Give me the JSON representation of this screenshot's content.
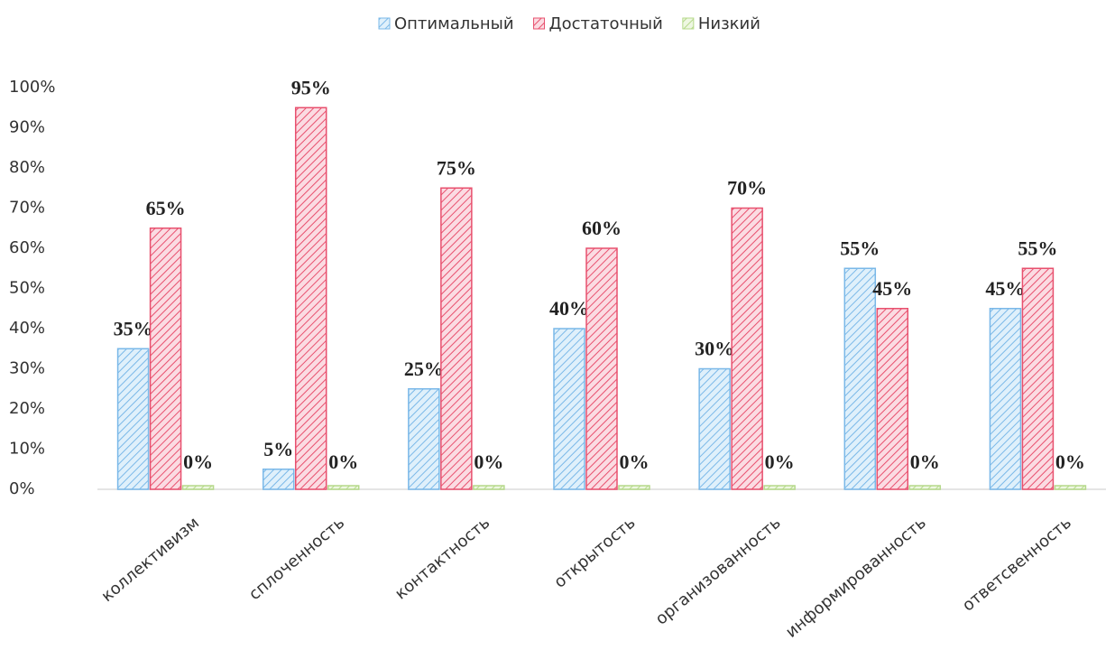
{
  "chart_data": {
    "type": "bar",
    "categories": [
      "коллективизм",
      "сплоченность",
      "контактность",
      "открытость",
      "организованность",
      "информированность",
      "ответсвенность"
    ],
    "series": [
      {
        "name": "Оптимальный",
        "color": "#7ab8e8",
        "values": [
          35,
          5,
          25,
          40,
          30,
          55,
          45
        ],
        "value_labels": [
          "35%",
          "5%",
          "25%",
          "40%",
          "30%",
          "55%",
          "45%"
        ]
      },
      {
        "name": "Достаточный",
        "color": "#e8506e",
        "values": [
          65,
          95,
          75,
          60,
          70,
          45,
          55
        ],
        "value_labels": [
          "65%",
          "95%",
          "75%",
          "60%",
          "70%",
          "45%",
          "55%"
        ]
      },
      {
        "name": "Низкий",
        "color": "#b5d98a",
        "values": [
          0,
          0,
          0,
          0,
          0,
          0,
          0
        ],
        "value_labels": [
          "0%",
          "0%",
          "0%",
          "0%",
          "0%",
          "0%",
          "0%"
        ]
      }
    ],
    "ylim": [
      0,
      100
    ],
    "yticks": [
      {
        "value": 0,
        "label": "0%"
      },
      {
        "value": 10,
        "label": "10%"
      },
      {
        "value": 20,
        "label": "20%"
      },
      {
        "value": 30,
        "label": "30%"
      },
      {
        "value": 40,
        "label": "40%"
      },
      {
        "value": 50,
        "label": "50%"
      },
      {
        "value": 60,
        "label": "60%"
      },
      {
        "value": 70,
        "label": "70%"
      },
      {
        "value": 80,
        "label": "80%"
      },
      {
        "value": 90,
        "label": "90%"
      },
      {
        "value": 100,
        "label": "100%"
      }
    ],
    "legend": "top"
  }
}
